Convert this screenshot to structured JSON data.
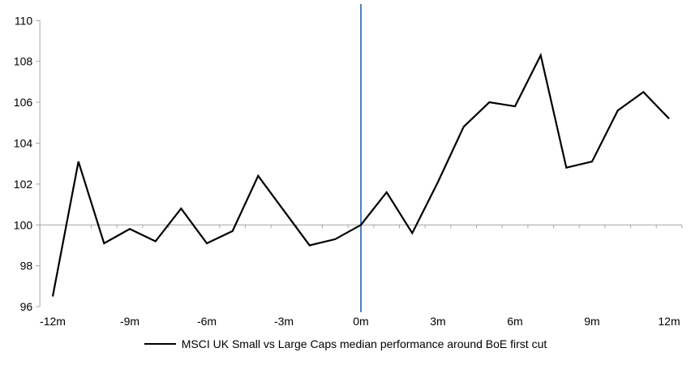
{
  "chart_data": {
    "type": "line",
    "title": "",
    "xlabel": "",
    "ylabel": "",
    "x_months": [
      -12,
      -11,
      -10,
      -9,
      -8,
      -7,
      -6,
      -5,
      -4,
      -3,
      -2,
      -1,
      0,
      1,
      2,
      3,
      4,
      5,
      6,
      7,
      8,
      9,
      10,
      11,
      12
    ],
    "series": [
      {
        "name": "MSCI UK Small vs Large Caps median performance around BoE first cut",
        "color": "#000000",
        "values": [
          96.5,
          103.1,
          99.1,
          99.8,
          99.2,
          100.8,
          99.1,
          99.7,
          102.4,
          100.7,
          99.0,
          99.3,
          100.0,
          101.6,
          99.6,
          102.1,
          104.8,
          106.0,
          105.8,
          108.3,
          102.8,
          103.1,
          105.6,
          106.5,
          105.2
        ]
      }
    ],
    "ylim": [
      96,
      110
    ],
    "ytick_step": 2,
    "ytick_labels": [
      "110",
      "108",
      "106",
      "104",
      "102",
      "100",
      "98",
      "96"
    ],
    "ytick_values": [
      110,
      108,
      106,
      104,
      102,
      100,
      98,
      96
    ],
    "xtick_label_months": [
      -12,
      -9,
      -6,
      -3,
      0,
      3,
      6,
      9,
      12
    ],
    "xtick_labels": [
      "-12m",
      "-9m",
      "-6m",
      "-3m",
      "0m",
      "3m",
      "6m",
      "9m",
      "12m"
    ],
    "baseline_value": 100,
    "event_line": {
      "x_month": 0,
      "color": "#4F81BD"
    },
    "axis_color": "#A6A6A6",
    "grid": "baseline-only",
    "legend_position": "bottom"
  },
  "legend": {
    "label": "MSCI UK Small vs Large Caps median performance around BoE first cut"
  }
}
